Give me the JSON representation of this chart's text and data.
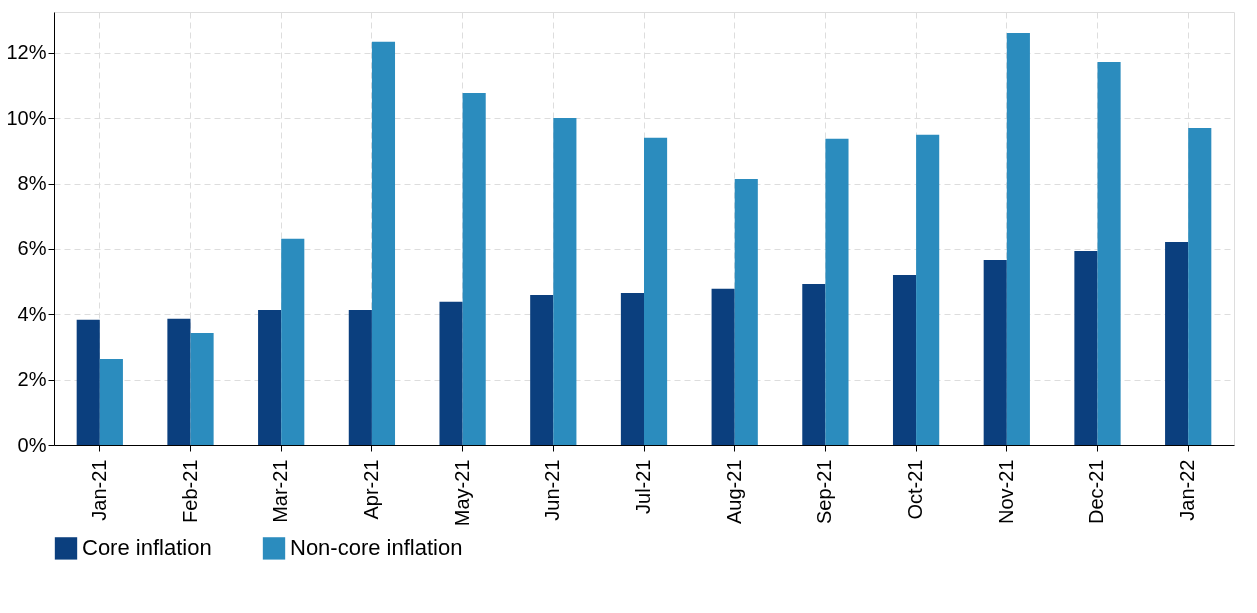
{
  "chart_data": {
    "type": "bar",
    "categories": [
      "Jan-21",
      "Feb-21",
      "Mar-21",
      "Apr-21",
      "May-21",
      "Jun-21",
      "Jul-21",
      "Aug-21",
      "Sep-21",
      "Oct-21",
      "Nov-21",
      "Dec-21",
      "Jan-22"
    ],
    "series": [
      {
        "name": "Core inflation",
        "color": "#0b3f7e",
        "values": [
          3.83,
          3.86,
          4.13,
          4.13,
          4.38,
          4.59,
          4.65,
          4.78,
          4.93,
          5.2,
          5.66,
          5.94,
          6.21
        ]
      },
      {
        "name": "Non-core inflation",
        "color": "#2b8cbe",
        "values": [
          2.63,
          3.43,
          6.31,
          12.34,
          10.77,
          10.01,
          9.4,
          8.14,
          9.37,
          9.49,
          12.61,
          11.72,
          9.7
        ]
      }
    ],
    "ylim": [
      0,
      13.25
    ],
    "yticks": [
      {
        "value": 0,
        "label": "0%"
      },
      {
        "value": 2,
        "label": "2%"
      },
      {
        "value": 4,
        "label": "4%"
      },
      {
        "value": 6,
        "label": "6%"
      },
      {
        "value": 8,
        "label": "8%"
      },
      {
        "value": 10,
        "label": "10%"
      },
      {
        "value": 12,
        "label": "12%"
      }
    ],
    "grid": true,
    "legend": "bottom"
  }
}
